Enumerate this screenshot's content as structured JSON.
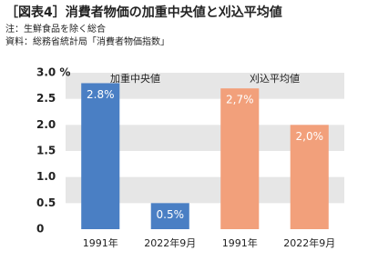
{
  "chart_data": {
    "type": "bar",
    "title": "［図表4］消費者物価の加重中央値と刈込平均値",
    "notes": [
      "注：生鮮食品を除く総合",
      "資料：総務省統計局「消費者物価指数」"
    ],
    "categories": [
      "1991年",
      "2022年9月"
    ],
    "series": [
      {
        "name": "加重中央値",
        "color": "#4a7fc4",
        "values": [
          2.8,
          0.5
        ],
        "value_labels": [
          "2.8%",
          "0.5%"
        ]
      },
      {
        "name": "刈込平均値",
        "color": "#f2a07b",
        "values": [
          2.7,
          2.0
        ],
        "value_labels": [
          "2,7%",
          "2,0%"
        ]
      }
    ],
    "ylim": [
      0,
      3
    ],
    "yticks": [
      {
        "value": 3,
        "label": "3.0 %"
      },
      2.5,
      {
        "value": 2,
        "label": "2.0"
      },
      1.5,
      {
        "value": 1,
        "label": "1.0"
      },
      0.5,
      0
    ],
    "grid": true
  }
}
